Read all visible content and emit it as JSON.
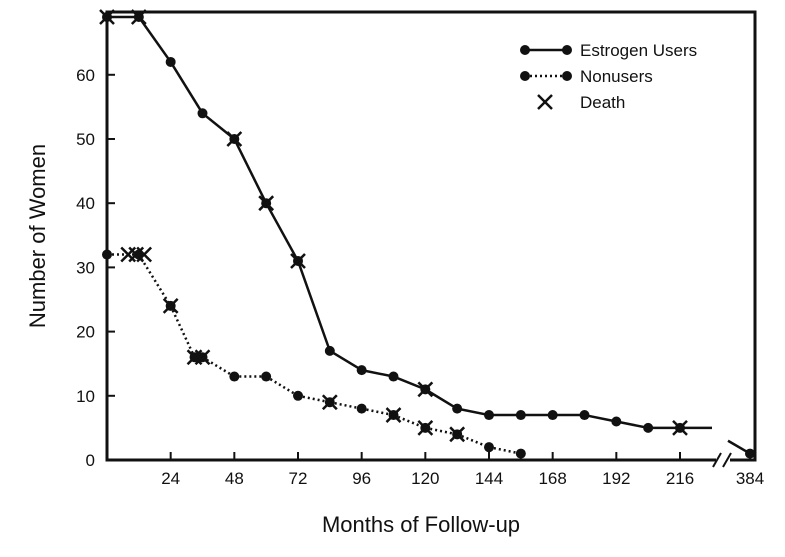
{
  "chart_data": {
    "type": "line",
    "title": "",
    "xlabel": "Months of Follow-up",
    "ylabel": "Number of Women",
    "x_ticks": [
      {
        "value": 24,
        "label": "24"
      },
      {
        "value": 48,
        "label": "48"
      },
      {
        "value": 72,
        "label": "72"
      },
      {
        "value": 96,
        "label": "96"
      },
      {
        "value": 120,
        "label": "120"
      },
      {
        "value": 144,
        "label": "144"
      },
      {
        "value": 168,
        "label": "168"
      },
      {
        "value": 192,
        "label": "192"
      },
      {
        "value": 216,
        "label": "216"
      },
      {
        "value": 384,
        "label": "384"
      }
    ],
    "y_ticks": [
      0,
      10,
      20,
      30,
      40,
      50,
      60
    ],
    "xlim": [
      0,
      240
    ],
    "x_break": {
      "from": 228,
      "to": 384
    },
    "ylim": [
      0,
      69
    ],
    "legend_position": "top-right",
    "series": [
      {
        "name": "Estrogen Users",
        "style": "solid",
        "points": [
          {
            "x": 0,
            "y": 69
          },
          {
            "x": 12,
            "y": 69
          },
          {
            "x": 24,
            "y": 62
          },
          {
            "x": 36,
            "y": 54
          },
          {
            "x": 48,
            "y": 50
          },
          {
            "x": 60,
            "y": 40
          },
          {
            "x": 72,
            "y": 31
          },
          {
            "x": 84,
            "y": 17
          },
          {
            "x": 96,
            "y": 14
          },
          {
            "x": 108,
            "y": 13
          },
          {
            "x": 120,
            "y": 11
          },
          {
            "x": 132,
            "y": 8
          },
          {
            "x": 144,
            "y": 7
          },
          {
            "x": 156,
            "y": 7
          },
          {
            "x": 168,
            "y": 7
          },
          {
            "x": 180,
            "y": 7
          },
          {
            "x": 192,
            "y": 6
          },
          {
            "x": 204,
            "y": 5
          },
          {
            "x": 216,
            "y": 5
          },
          {
            "x": 384,
            "y": 1
          }
        ],
        "deaths": [
          {
            "x": 0,
            "y": 69
          },
          {
            "x": 12,
            "y": 69
          },
          {
            "x": 48,
            "y": 50
          },
          {
            "x": 60,
            "y": 40
          },
          {
            "x": 72,
            "y": 31
          },
          {
            "x": 120,
            "y": 11
          },
          {
            "x": 216,
            "y": 5
          }
        ]
      },
      {
        "name": "Nonusers",
        "style": "dotted",
        "points": [
          {
            "x": 0,
            "y": 32
          },
          {
            "x": 12,
            "y": 32
          },
          {
            "x": 24,
            "y": 24
          },
          {
            "x": 33,
            "y": 16
          },
          {
            "x": 36,
            "y": 16
          },
          {
            "x": 48,
            "y": 13
          },
          {
            "x": 60,
            "y": 13
          },
          {
            "x": 72,
            "y": 10
          },
          {
            "x": 84,
            "y": 9
          },
          {
            "x": 96,
            "y": 8
          },
          {
            "x": 108,
            "y": 7
          },
          {
            "x": 120,
            "y": 5
          },
          {
            "x": 132,
            "y": 4
          },
          {
            "x": 144,
            "y": 2
          },
          {
            "x": 156,
            "y": 1
          }
        ],
        "deaths": [
          {
            "x": 8,
            "y": 32
          },
          {
            "x": 11,
            "y": 32
          },
          {
            "x": 14,
            "y": 32
          },
          {
            "x": 24,
            "y": 24
          },
          {
            "x": 33,
            "y": 16
          },
          {
            "x": 36,
            "y": 16
          },
          {
            "x": 84,
            "y": 9
          },
          {
            "x": 108,
            "y": 7
          },
          {
            "x": 120,
            "y": 5
          },
          {
            "x": 132,
            "y": 4
          }
        ]
      }
    ],
    "legend": [
      {
        "label": "Estrogen Users",
        "marker": "solid-line-dot"
      },
      {
        "label": "Nonusers",
        "marker": "dotted-line-dot"
      },
      {
        "label": "Death",
        "marker": "x"
      }
    ]
  }
}
